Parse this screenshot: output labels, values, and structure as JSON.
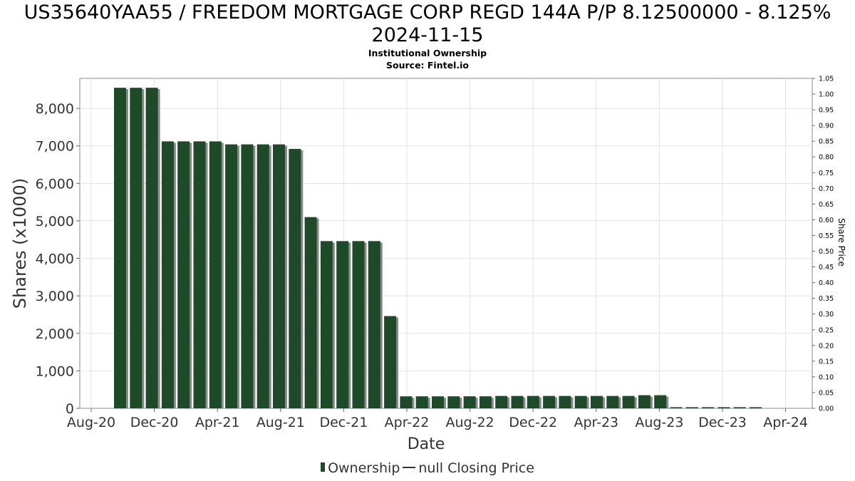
{
  "title_lines": [
    "US35640YAA55 / FREEDOM MORTGAGE CORP REGD 144A P/P 8.12500000 - 8.125%",
    "2024-11-15"
  ],
  "subtitle_lines": [
    "Institutional Ownership",
    "Source: Fintel.io"
  ],
  "legend": {
    "ownership_label": "Ownership",
    "price_label": "null Closing Price"
  },
  "colors": {
    "bar": "#1f4a2a",
    "bar_shadow": "#8a8a8a",
    "grid": "#e2e2e2",
    "axis_text": "#333333"
  },
  "chart_data": {
    "type": "bar",
    "xlabel": "Date",
    "ylabel": "Shares (x1000)",
    "y2label": "Share Price",
    "ylim": [
      0,
      8800
    ],
    "y2lim": [
      0,
      1.05
    ],
    "y_ticks": [
      0,
      1000,
      2000,
      3000,
      4000,
      5000,
      6000,
      7000,
      8000
    ],
    "y_tick_labels": [
      "0",
      "1,000",
      "2,000",
      "3,000",
      "4,000",
      "5,000",
      "6,000",
      "7,000",
      "8,000"
    ],
    "y2_ticks": [
      "0.00",
      "0.05",
      "0.10",
      "0.15",
      "0.20",
      "0.25",
      "0.30",
      "0.35",
      "0.40",
      "0.45",
      "0.50",
      "0.55",
      "0.60",
      "0.65",
      "0.70",
      "0.75",
      "0.80",
      "0.85",
      "0.90",
      "0.95",
      "1.00",
      "1.05"
    ],
    "x_tick_labels": [
      "Aug-20",
      "Dec-20",
      "Apr-21",
      "Aug-21",
      "Dec-21",
      "Apr-22",
      "Aug-22",
      "Dec-22",
      "Apr-23",
      "Aug-23",
      "Dec-23",
      "Apr-24"
    ],
    "grid": true,
    "legend_position": "bottom",
    "series": [
      {
        "name": "Ownership",
        "values": [
          8550,
          8550,
          8550,
          7120,
          7120,
          7120,
          7120,
          7040,
          7040,
          7040,
          7040,
          6920,
          5100,
          4460,
          4460,
          4460,
          4460,
          2460,
          320,
          320,
          320,
          320,
          320,
          320,
          330,
          330,
          330,
          330,
          330,
          330,
          330,
          330,
          330,
          350,
          350,
          30,
          30,
          30,
          30,
          30,
          30
        ]
      }
    ]
  }
}
